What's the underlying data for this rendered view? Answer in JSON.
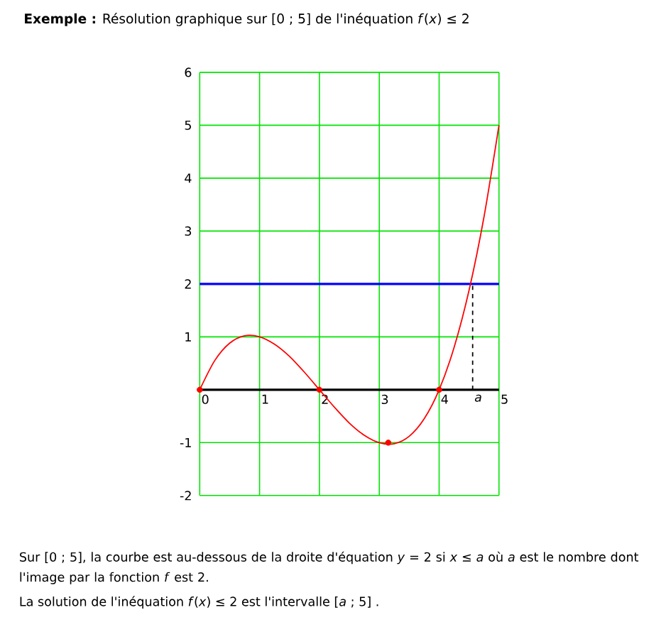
{
  "chart_data": {
    "type": "line",
    "title": "**Exemple :** Résolution graphique sur [0 ; 5] de l'inéquation *f*(*x*) ≤ 2",
    "annotations": [
      "Sur [0 ; 5], la courbe est au-dessous de la droite d'équation *y* = 2 si *x* ≤ *a* où *a* est le nombre dont l'image par la fonction *f* est 2.",
      "La solution de l'inéquation *f*(*x*) ≤ 2 est l'intervalle [*a* ; 5] ."
    ],
    "xlim": [
      0,
      5
    ],
    "ylim": [
      -2,
      6
    ],
    "xticks": [
      0,
      1,
      2,
      3,
      4,
      {
        "value": 4.56,
        "label": "a"
      },
      5
    ],
    "yticks": [
      -2,
      -1,
      1,
      2,
      3,
      4,
      5,
      6
    ],
    "grid": true,
    "ref_lines": [
      {
        "axis": "y",
        "value": 2,
        "color": "#0000ff"
      }
    ],
    "series": [
      {
        "color": "#ff0000",
        "marker": "none",
        "x": [
          0,
          0.25,
          0.5,
          0.75,
          1,
          1.25,
          1.5,
          1.75,
          2,
          2.25,
          2.5,
          2.75,
          3,
          3.25,
          3.5,
          3.75,
          4,
          4.25,
          4.5,
          4.75,
          5
        ],
        "values": [
          0,
          0.55,
          0.88,
          1.02,
          1,
          0.86,
          0.63,
          0.33,
          0,
          -0.33,
          -0.63,
          -0.86,
          -1,
          -1.02,
          -0.88,
          -0.55,
          0,
          0.8,
          1.88,
          3.27,
          5
        ]
      },
      {
        "type": "line",
        "color": "#000000",
        "marker": "none",
        "line_style": "dashed",
        "x": [
          4.56,
          4.56
        ],
        "values": [
          0,
          2
        ]
      },
      {
        "type": "scatter",
        "color": "#ff0000",
        "marker": "circle",
        "x": [
          0,
          2,
          4,
          3.15
        ],
        "values": [
          0,
          0,
          0,
          -1
        ]
      }
    ]
  }
}
